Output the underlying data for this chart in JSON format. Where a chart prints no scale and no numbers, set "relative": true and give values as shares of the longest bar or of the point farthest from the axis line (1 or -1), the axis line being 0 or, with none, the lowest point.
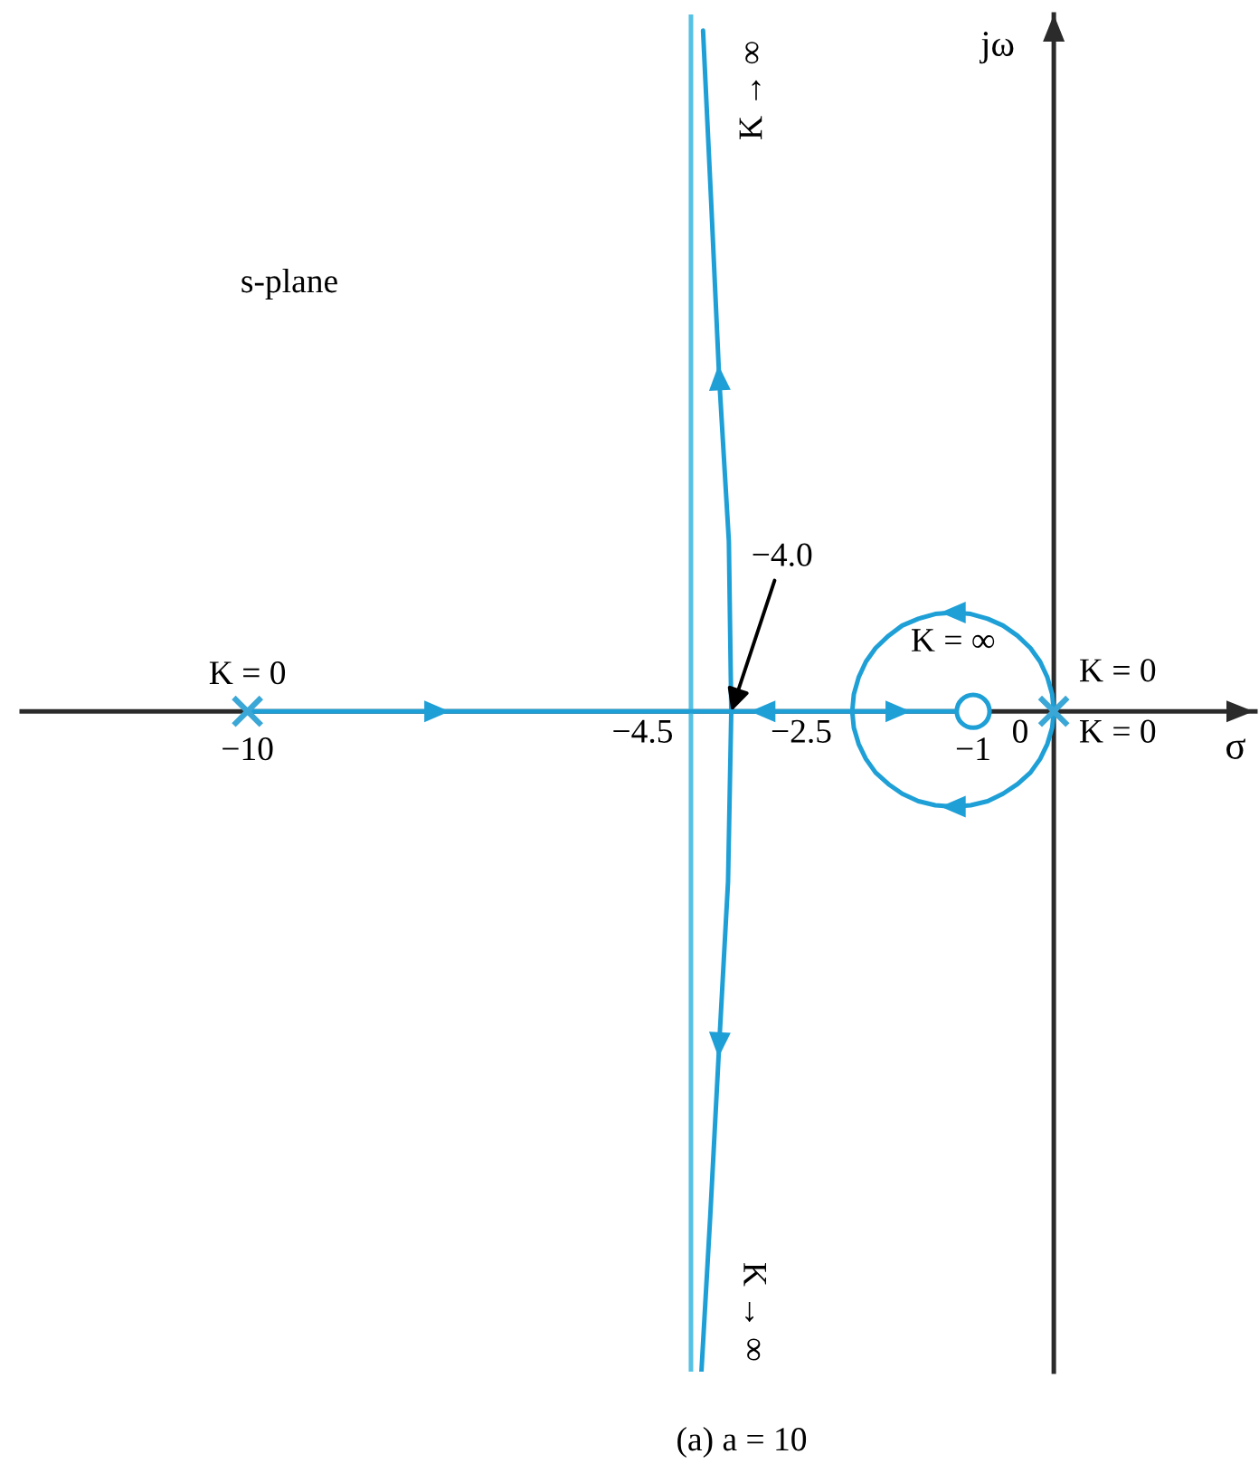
{
  "chart_data": {
    "type": "line",
    "relative": true,
    "xlabel": "σ",
    "ylabel": "jω",
    "xlim": [
      -12.8,
      2.5
    ],
    "xticks": [
      {
        "value": -10,
        "label": "−10"
      },
      {
        "value": -1,
        "label": "−1"
      }
    ],
    "tick_labels": "x",
    "ref_lines": [
      {
        "axis": "x",
        "value": -4.5,
        "color": "#55c1e4"
      }
    ],
    "annotations": [
      "s-plane",
      {
        "text": "K = 0",
        "x": -10,
        "y": 0
      },
      {
        "text": "K → ∞",
        "x": -4.35,
        "y": 1
      },
      {
        "text": "K → ∞",
        "x": -4.37,
        "y": -0.97
      },
      {
        "text": "−4.0",
        "x": -4.0,
        "y": 0
      },
      {
        "text": "K = ∞",
        "x": -1,
        "y": 0
      },
      {
        "text": "K = 0",
        "x": 0,
        "y": 0
      },
      {
        "text": "K = 0",
        "x": 0,
        "y": 0
      },
      {
        "text": "−4.5",
        "x": -4.5,
        "y": 0
      },
      {
        "text": "−2.5",
        "x": -2.5,
        "y": 0
      },
      {
        "text": "0",
        "x": 0,
        "y": 0
      },
      "(a) a = 10"
    ],
    "series": [
      {
        "type": "line",
        "color": "#1ea0d7",
        "x": [
          -10,
          -7.65,
          -4.0,
          -4.03,
          -4.15,
          -4.25,
          -4.35
        ],
        "values": [
          0,
          0,
          0,
          0.25,
          0.49,
          0.75,
          1
        ]
      },
      {
        "type": "line",
        "color": "#1ea0d7",
        "x": [
          0,
          -0.02,
          -0.08,
          -0.17,
          -0.29,
          -0.45,
          -0.63,
          -0.82,
          -1.03,
          -1.25,
          -1.47,
          -1.68,
          -1.88,
          -2.05,
          -2.21,
          -2.33,
          -2.42,
          -2.48,
          -2.5,
          -3.61,
          -4.0,
          -4.04,
          -4.15,
          -4.26,
          -4.37
        ],
        "values": [
          0,
          0.025,
          0.05,
          0.073,
          0.093,
          0.111,
          0.126,
          0.136,
          0.143,
          0.145,
          0.143,
          0.136,
          0.126,
          0.111,
          0.093,
          0.073,
          0.05,
          0.025,
          0,
          0,
          0,
          -0.25,
          -0.49,
          -0.74,
          -0.97
        ]
      },
      {
        "type": "line",
        "color": "#1ea0d7",
        "x": [
          0,
          -0.02,
          -0.08,
          -0.17,
          -0.29,
          -0.45,
          -0.63,
          -0.82,
          -1.03,
          -1.25,
          -1.47,
          -1.68,
          -1.88,
          -2.05,
          -2.21,
          -2.33,
          -2.42,
          -2.48,
          -2.5,
          -1.93,
          -1
        ],
        "values": [
          0,
          -0.024,
          -0.048,
          -0.07,
          -0.09,
          -0.107,
          -0.121,
          -0.132,
          -0.138,
          -0.14,
          -0.138,
          -0.132,
          -0.121,
          -0.107,
          -0.09,
          -0.07,
          -0.048,
          -0.024,
          0,
          0,
          0
        ]
      },
      {
        "type": "scatter",
        "marker": "cross",
        "color": "#3ba7d6",
        "x": [
          -10,
          0
        ],
        "values": [
          0,
          0
        ]
      },
      {
        "type": "scatter",
        "marker": "circle",
        "color": "#1ea0d7",
        "x": [
          -1
        ],
        "values": [
          0
        ]
      }
    ]
  }
}
